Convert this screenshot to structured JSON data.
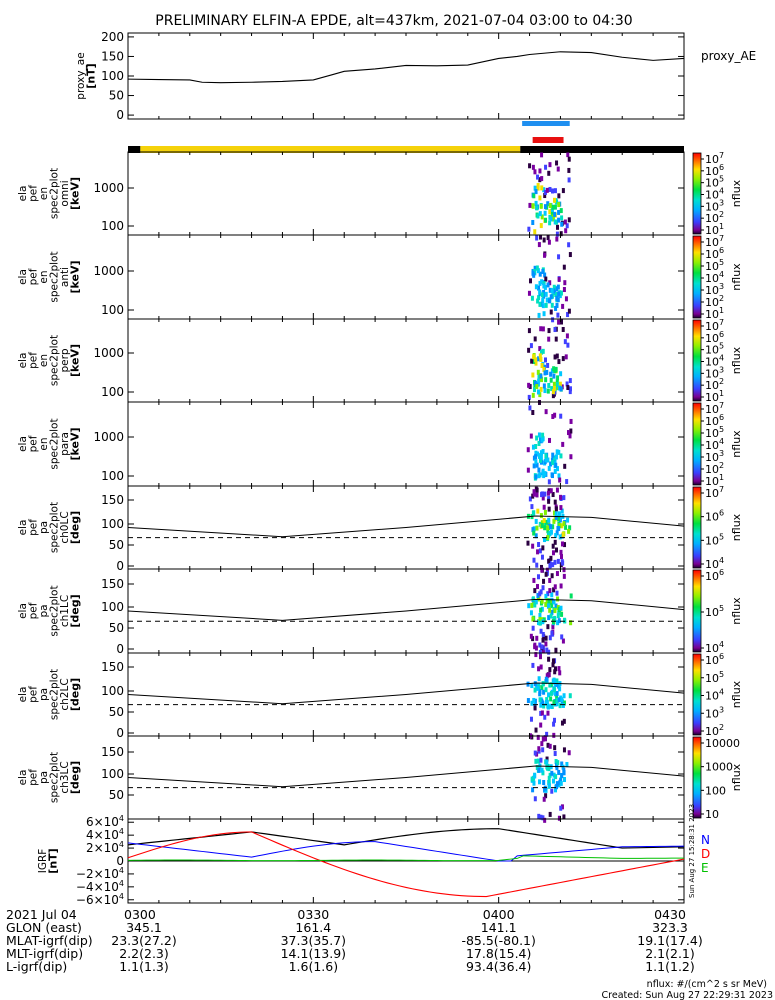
{
  "title": "PRELIMINARY ELFIN-A EPDE, alt=437km, 2021-07-04 03:00 to 04:30",
  "footer": {
    "units": "nflux: #/(cm^2 s sr MeV)",
    "created": "Created: Sun Aug 27 22:29:31 2023",
    "side_stamp": "Sun Aug 27 15:28:31 2023"
  },
  "colors": {
    "yellow": "#f5d20a",
    "black": "#000000",
    "bar_blue": "#1f8ff0",
    "bar_red": "#e81010",
    "trace_N": "#0000ff",
    "trace_D": "#ff0000",
    "trace_E": "#00c000"
  },
  "chart_data": [
    {
      "id": "proxy_ae",
      "type": "line",
      "ylabel": "proxy_ae [nT]",
      "legend": "proxy_AE",
      "yticks": [
        "200",
        "150",
        "100",
        "50",
        "0"
      ],
      "ylim": [
        -10,
        210
      ],
      "xlim": [
        0,
        90
      ],
      "x": [
        0,
        5,
        10,
        12,
        15,
        20,
        25,
        30,
        33,
        35,
        40,
        45,
        50,
        55,
        60,
        63,
        65,
        70,
        75,
        80,
        85,
        90
      ],
      "y": [
        92,
        91,
        90,
        84,
        83,
        84,
        86,
        90,
        103,
        112,
        118,
        127,
        126,
        128,
        145,
        150,
        155,
        162,
        160,
        148,
        140,
        145
      ]
    },
    {
      "id": "status_bars",
      "type": "bar",
      "segments": [
        {
          "x0": 0,
          "x1": 2,
          "color": "black"
        },
        {
          "x0": 2,
          "x1": 63.5,
          "color": "yellow"
        },
        {
          "x0": 63.5,
          "x1": 90,
          "color": "black"
        }
      ],
      "blue_bar": [
        63.8,
        71.5
      ],
      "red_bar": [
        65.5,
        70.5
      ]
    },
    {
      "id": "omni",
      "type": "heatmap",
      "ylabel": [
        "ela",
        "pef",
        "en",
        "spec2plot",
        "omni",
        "[keV]"
      ],
      "yticks": [
        "1000",
        "100"
      ],
      "colorbar": {
        "label": "nflux",
        "ticks": [
          "10^7",
          "10^6",
          "10^5",
          "10^4",
          "10^3",
          "10^2",
          "10^1"
        ]
      }
    },
    {
      "id": "anti",
      "type": "heatmap",
      "ylabel": [
        "ela",
        "pef",
        "en",
        "spec2plot",
        "anti",
        "[keV]"
      ],
      "yticks": [
        "1000",
        "100"
      ],
      "colorbar": {
        "label": "nflux",
        "ticks": [
          "10^7",
          "10^6",
          "10^5",
          "10^4",
          "10^3",
          "10^2",
          "10^1"
        ]
      }
    },
    {
      "id": "perp",
      "type": "heatmap",
      "ylabel": [
        "ela",
        "pef",
        "en",
        "spec2plot",
        "perp",
        "[keV]"
      ],
      "yticks": [
        "1000",
        "100"
      ],
      "colorbar": {
        "label": "nflux",
        "ticks": [
          "10^7",
          "10^6",
          "10^5",
          "10^4",
          "10^3",
          "10^2",
          "10^1"
        ]
      }
    },
    {
      "id": "para",
      "type": "heatmap",
      "ylabel": [
        "ela",
        "pef",
        "en",
        "spec2plot",
        "para",
        "[keV]"
      ],
      "yticks": [
        "1000",
        "100"
      ],
      "colorbar": {
        "label": "nflux",
        "ticks": [
          "10^7",
          "10^6",
          "10^5",
          "10^4",
          "10^3",
          "10^2",
          "10^1"
        ]
      }
    },
    {
      "id": "ch0LC",
      "type": "heatmap",
      "ylabel": [
        "ela",
        "pef",
        "pa",
        "spec2plot",
        "ch0LC",
        "[deg]"
      ],
      "yticks": [
        "150",
        "100",
        "50",
        "0"
      ],
      "colorbar": {
        "label": "nflux",
        "ticks": [
          "10^7",
          "10^6",
          "10^5",
          "10^4"
        ]
      }
    },
    {
      "id": "ch1LC",
      "type": "heatmap",
      "ylabel": [
        "ela",
        "pef",
        "pa",
        "spec2plot",
        "ch1LC",
        "[deg]"
      ],
      "yticks": [
        "150",
        "100",
        "50",
        "0"
      ],
      "colorbar": {
        "label": "nflux",
        "ticks": [
          "10^6",
          "10^5",
          "10^4"
        ]
      }
    },
    {
      "id": "ch2LC",
      "type": "heatmap",
      "ylabel": [
        "ela",
        "pef",
        "pa",
        "spec2plot",
        "ch2LC",
        "[deg]"
      ],
      "yticks": [
        "150",
        "100",
        "50",
        "0"
      ],
      "colorbar": {
        "label": "nflux",
        "ticks": [
          "10^6",
          "10^5",
          "10^4",
          "10^3",
          "10^2"
        ]
      }
    },
    {
      "id": "ch3LC",
      "type": "heatmap",
      "ylabel": [
        "ela",
        "pef",
        "pa",
        "spec2plot",
        "ch3LC",
        "[deg]"
      ],
      "yticks": [
        "150",
        "100",
        "50"
      ],
      "colorbar": {
        "label": "nflux",
        "ticks": [
          "10000",
          "1000",
          "100",
          "10"
        ]
      }
    },
    {
      "id": "igrf",
      "type": "line",
      "ylabel": [
        "IGRF",
        "[nT]"
      ],
      "yticks": [
        "6×10^4",
        "4×10^4",
        "2×10^4",
        "0",
        "−2×10^4",
        "−4×10^4",
        "−6×10^4"
      ],
      "ylim": [
        -65000,
        65000
      ],
      "legend": [
        "N",
        "D",
        "E"
      ]
    }
  ],
  "orbit_table": {
    "labels": [
      "2021 Jul 04",
      "GLON (east)",
      "MLAT-igrf(dip)",
      "MLT-igrf(dip)",
      "L-igrf(dip)"
    ],
    "columns": [
      {
        "time": "0300",
        "values": [
          "345.1",
          "23.3(27.2)",
          "2.2(2.3)",
          "1.1(1.3)"
        ]
      },
      {
        "time": "0330",
        "values": [
          "161.4",
          "37.3(35.7)",
          "14.1(13.9)",
          "1.6(1.6)"
        ]
      },
      {
        "time": "0400",
        "values": [
          "141.1",
          "-85.5(-80.1)",
          "17.8(15.4)",
          "93.4(36.4)"
        ]
      },
      {
        "time": "0430",
        "values": [
          "323.3",
          "19.1(17.4)",
          "2.1(2.1)",
          "1.1(1.2)"
        ]
      }
    ]
  }
}
